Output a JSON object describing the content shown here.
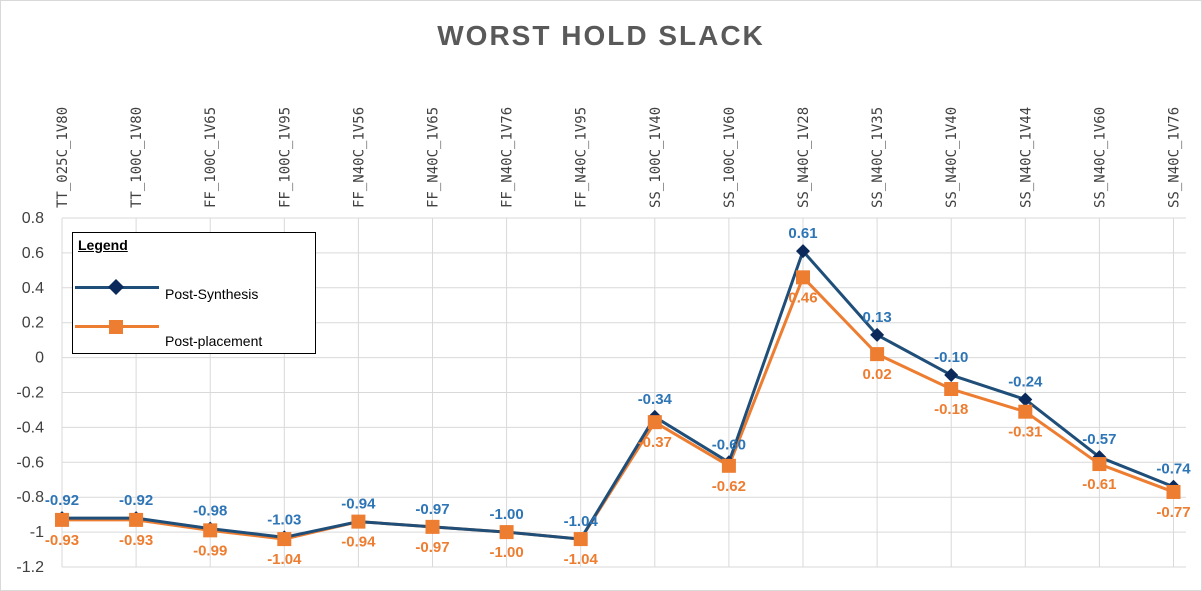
{
  "chart_data": {
    "type": "line",
    "title": "WORST HOLD SLACK",
    "categories": [
      "TT_025C_1V80",
      "TT_100C_1V80",
      "FF_100C_1V65",
      "FF_100C_1V95",
      "FF_N40C_1V56",
      "FF_N40C_1V65",
      "FF_N40C_1V76",
      "FF_N40C_1V95",
      "SS_100C_1V40",
      "SS_100C_1V60",
      "SS_N40C_1V28",
      "SS_N40C_1V35",
      "SS_N40C_1V40",
      "SS_N40C_1V44",
      "SS_N40C_1V60",
      "SS_N40C_1V76"
    ],
    "series": [
      {
        "name": "Post-Synthesis",
        "values": [
          -0.92,
          -0.92,
          -0.98,
          -1.03,
          -0.94,
          -0.97,
          -1.0,
          -1.04,
          -0.34,
          -0.6,
          0.61,
          0.13,
          -0.1,
          -0.24,
          -0.57,
          -0.74
        ],
        "labels": [
          "-0.92",
          "-0.92",
          "-0.98",
          "-1.03",
          "-0.94",
          "-0.97",
          "-1.00",
          "-1.04",
          "-0.34",
          "-0.60",
          "0.61",
          "0.13",
          "-0.10",
          "-0.24",
          "-0.57",
          "-0.74"
        ],
        "color": "#1f4e79",
        "label_color": "#2e75b6",
        "marker": "diamond"
      },
      {
        "name": "Post-placement",
        "values": [
          -0.93,
          -0.93,
          -0.99,
          -1.04,
          -0.94,
          -0.97,
          -1.0,
          -1.04,
          -0.37,
          -0.62,
          0.46,
          0.02,
          -0.18,
          -0.31,
          -0.61,
          -0.77
        ],
        "labels": [
          "-0.93",
          "-0.93",
          "-0.99",
          "-1.04",
          "-0.94",
          "-0.97",
          "-1.00",
          "-1.04",
          "-0.37",
          "-0.62",
          "0.46",
          "0.02",
          "-0.18",
          "-0.31",
          "-0.61",
          "-0.77"
        ],
        "color": "#ed7d31",
        "label_color": "#ed7d31",
        "marker": "square"
      }
    ],
    "ylim": [
      -1.2,
      0.8
    ],
    "yticks": [
      "0.8",
      "0.6",
      "0.4",
      "0.2",
      "0",
      "-0.2",
      "-0.4",
      "-0.6",
      "-0.8",
      "-1",
      "-1.2"
    ],
    "ytick_values": [
      0.8,
      0.6,
      0.4,
      0.2,
      0,
      -0.2,
      -0.4,
      -0.6,
      -0.8,
      -1,
      -1.2
    ],
    "grid": true,
    "legend": {
      "title": "Legend",
      "placement": "top-left"
    },
    "xaxis_position": "top"
  }
}
